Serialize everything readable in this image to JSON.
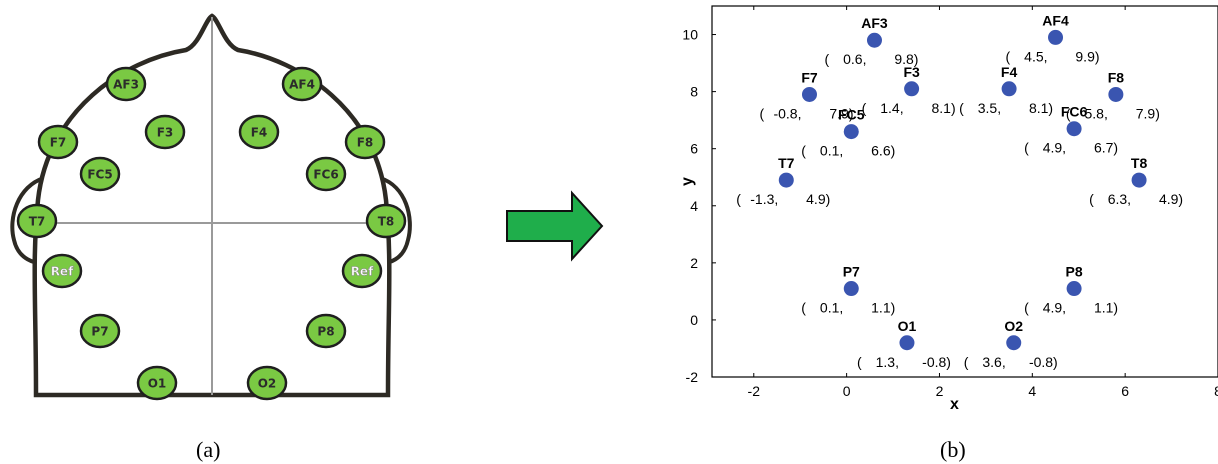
{
  "panel_a": {
    "caption": "(a)",
    "electrodes": [
      {
        "id": "AF3",
        "label": "AF3",
        "is_ref": false
      },
      {
        "id": "AF4",
        "label": "AF4",
        "is_ref": false
      },
      {
        "id": "F7",
        "label": "F7",
        "is_ref": false
      },
      {
        "id": "F3",
        "label": "F3",
        "is_ref": false
      },
      {
        "id": "F4",
        "label": "F4",
        "is_ref": false
      },
      {
        "id": "F8",
        "label": "F8",
        "is_ref": false
      },
      {
        "id": "FC5",
        "label": "FC5",
        "is_ref": false
      },
      {
        "id": "FC6",
        "label": "FC6",
        "is_ref": false
      },
      {
        "id": "T7",
        "label": "T7",
        "is_ref": false
      },
      {
        "id": "T8",
        "label": "T8",
        "is_ref": false
      },
      {
        "id": "RefL",
        "label": "Ref",
        "is_ref": true
      },
      {
        "id": "RefR",
        "label": "Ref",
        "is_ref": true
      },
      {
        "id": "P7",
        "label": "P7",
        "is_ref": false
      },
      {
        "id": "P8",
        "label": "P8",
        "is_ref": false
      },
      {
        "id": "O1",
        "label": "O1",
        "is_ref": false
      },
      {
        "id": "O2",
        "label": "O2",
        "is_ref": false
      }
    ],
    "colors": {
      "electrode_fill": "#7ac943",
      "electrode_stroke": "#1f1f1f",
      "head_stroke": "#2d2a24",
      "crosshair": "#9a9a9a"
    }
  },
  "arrow": {
    "color": "#1fae4b",
    "icon": "right-arrow-icon"
  },
  "panel_b": {
    "caption": "(b)",
    "chart_data": {
      "type": "scatter",
      "xlabel": "x",
      "ylabel": "y",
      "xlim": [
        -2.9,
        8.0
      ],
      "ylim": [
        -2,
        11
      ],
      "xticks": [
        -2,
        0,
        2,
        4,
        6,
        8
      ],
      "yticks": [
        -2,
        0,
        2,
        4,
        6,
        8,
        10
      ],
      "marker_color": "#3a55b0",
      "points": [
        {
          "label": "AF3",
          "x": 0.6,
          "y": 9.8,
          "x_text": "0.6,",
          "y_text": "9.8)"
        },
        {
          "label": "AF4",
          "x": 4.5,
          "y": 9.9,
          "x_text": "4.5,",
          "y_text": "9.9)"
        },
        {
          "label": "F7",
          "x": -0.8,
          "y": 7.9,
          "x_text": "-0.8,",
          "y_text": "7.9)"
        },
        {
          "label": "F3",
          "x": 1.4,
          "y": 8.1,
          "x_text": "1.4,",
          "y_text": "8.1)"
        },
        {
          "label": "F4",
          "x": 3.5,
          "y": 8.1,
          "x_text": "3.5,",
          "y_text": "8.1)"
        },
        {
          "label": "F8",
          "x": 5.8,
          "y": 7.9,
          "x_text": "5.8,",
          "y_text": "7.9)"
        },
        {
          "label": "FC5",
          "x": 0.1,
          "y": 6.6,
          "x_text": "0.1,",
          "y_text": "6.6)"
        },
        {
          "label": "FC6",
          "x": 4.9,
          "y": 6.7,
          "x_text": "4.9,",
          "y_text": "6.7)"
        },
        {
          "label": "T7",
          "x": -1.3,
          "y": 4.9,
          "x_text": "-1.3,",
          "y_text": "4.9)"
        },
        {
          "label": "T8",
          "x": 6.3,
          "y": 4.9,
          "x_text": "6.3,",
          "y_text": "4.9)"
        },
        {
          "label": "P7",
          "x": 0.1,
          "y": 1.1,
          "x_text": "0.1,",
          "y_text": "1.1)"
        },
        {
          "label": "P8",
          "x": 4.9,
          "y": 1.1,
          "x_text": "4.9,",
          "y_text": "1.1)"
        },
        {
          "label": "O1",
          "x": 1.3,
          "y": -0.8,
          "x_text": "1.3,",
          "y_text": "-0.8)"
        },
        {
          "label": "O2",
          "x": 3.6,
          "y": -0.8,
          "x_text": "3.6,",
          "y_text": "-0.8)"
        }
      ]
    }
  }
}
